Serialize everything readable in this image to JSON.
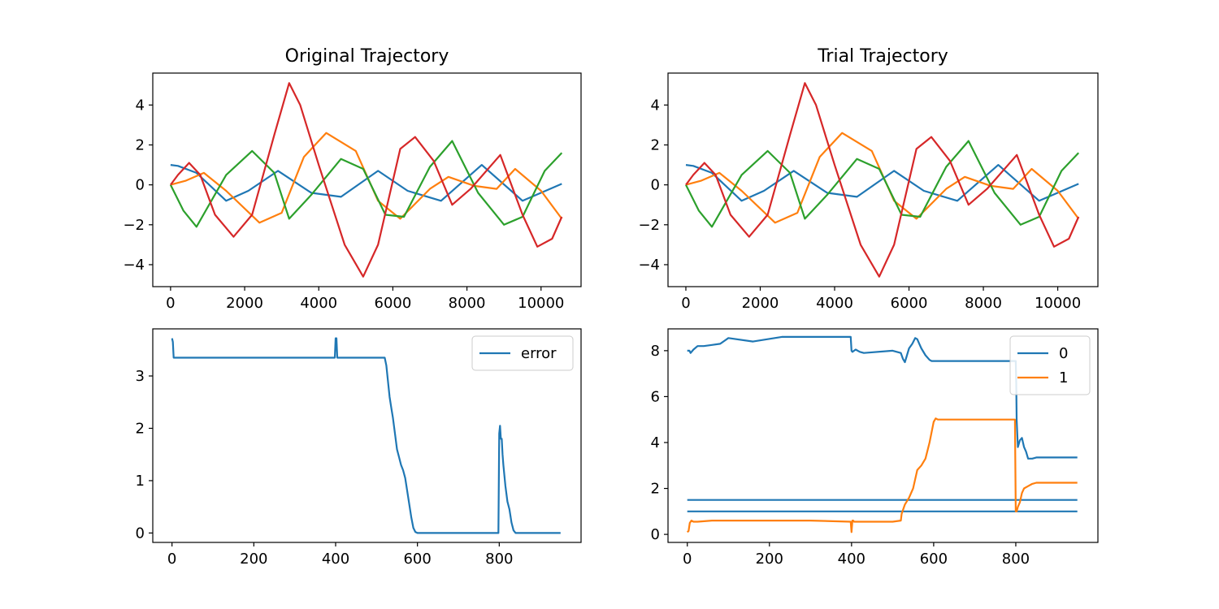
{
  "chart_data": [
    {
      "type": "line",
      "title": "Original Trajectory",
      "xlim": [
        -480,
        11080
      ],
      "ylim": [
        -5.1,
        5.6
      ],
      "xticks": [
        0,
        2000,
        4000,
        6000,
        8000,
        10000
      ],
      "xtick_labels": [
        "0",
        "2000",
        "4000",
        "6000",
        "8000",
        "10000"
      ],
      "yticks": [
        -4,
        -2,
        0,
        2,
        4
      ],
      "ytick_labels": [
        "−4",
        "−2",
        "0",
        "2",
        "4"
      ],
      "series": [
        {
          "color": "#1f77b4",
          "x": [
            0,
            200,
            700,
            1500,
            2100,
            2900,
            3800,
            4600,
            5600,
            6400,
            7300,
            8400,
            9500,
            10560
          ],
          "y": [
            1,
            0.95,
            0.6,
            -0.8,
            -0.3,
            0.7,
            -0.4,
            -0.6,
            0.7,
            -0.3,
            -0.8,
            1.0,
            -0.8,
            0.05
          ]
        },
        {
          "color": "#ff7f0e",
          "x": [
            0,
            400,
            900,
            1500,
            2400,
            3000,
            3600,
            4200,
            5000,
            5600,
            6200,
            7000,
            7500,
            8200,
            8800,
            9300,
            10000,
            10560
          ],
          "y": [
            0,
            0.2,
            0.6,
            -0.3,
            -1.9,
            -1.4,
            1.4,
            2.6,
            1.7,
            -0.8,
            -1.7,
            -0.2,
            0.4,
            -0.05,
            -0.2,
            0.8,
            -0.3,
            -1.7
          ]
        },
        {
          "color": "#2ca02c",
          "x": [
            0,
            350,
            700,
            1500,
            2200,
            2800,
            3200,
            3800,
            4600,
            5200,
            5800,
            6300,
            7000,
            7600,
            8300,
            9000,
            9500,
            10100,
            10560
          ],
          "y": [
            0,
            -1.3,
            -2.1,
            0.5,
            1.7,
            0.6,
            -1.7,
            -0.5,
            1.3,
            0.8,
            -1.5,
            -1.6,
            0.9,
            2.2,
            -0.4,
            -2.0,
            -1.6,
            0.7,
            1.6
          ]
        },
        {
          "color": "#d62728",
          "x": [
            0,
            200,
            500,
            800,
            1200,
            1700,
            2200,
            2800,
            3200,
            3500,
            4000,
            4700,
            5200,
            5600,
            6200,
            6600,
            7100,
            7600,
            8100,
            8900,
            9500,
            9900,
            10300,
            10560
          ],
          "y": [
            0,
            0.5,
            1.1,
            0.5,
            -1.5,
            -2.6,
            -1.5,
            2.5,
            5.1,
            4.0,
            1.0,
            -3.0,
            -4.6,
            -3.0,
            1.8,
            2.4,
            1.2,
            -1.0,
            -0.2,
            1.5,
            -1.5,
            -3.1,
            -2.7,
            -1.6
          ]
        }
      ]
    },
    {
      "type": "line",
      "title": "Trial Trajectory",
      "xlim": [
        -480,
        11080
      ],
      "ylim": [
        -5.1,
        5.6
      ],
      "xticks": [
        0,
        2000,
        4000,
        6000,
        8000,
        10000
      ],
      "xtick_labels": [
        "0",
        "2000",
        "4000",
        "6000",
        "8000",
        "10000"
      ],
      "yticks": [
        -4,
        -2,
        0,
        2,
        4
      ],
      "ytick_labels": [
        "−4",
        "−2",
        "0",
        "2",
        "4"
      ],
      "series": [
        {
          "color": "#1f77b4",
          "x": [
            0,
            200,
            700,
            1500,
            2100,
            2900,
            3800,
            4600,
            5600,
            6400,
            7300,
            8400,
            9500,
            10560
          ],
          "y": [
            1,
            0.95,
            0.6,
            -0.8,
            -0.3,
            0.7,
            -0.4,
            -0.6,
            0.7,
            -0.3,
            -0.8,
            1.0,
            -0.8,
            0.05
          ]
        },
        {
          "color": "#ff7f0e",
          "x": [
            0,
            400,
            900,
            1500,
            2400,
            3000,
            3600,
            4200,
            5000,
            5600,
            6200,
            7000,
            7500,
            8200,
            8800,
            9300,
            10000,
            10560
          ],
          "y": [
            0,
            0.2,
            0.6,
            -0.3,
            -1.9,
            -1.4,
            1.4,
            2.6,
            1.7,
            -0.8,
            -1.7,
            -0.2,
            0.4,
            -0.05,
            -0.2,
            0.8,
            -0.3,
            -1.7
          ]
        },
        {
          "color": "#2ca02c",
          "x": [
            0,
            350,
            700,
            1500,
            2200,
            2800,
            3200,
            3800,
            4600,
            5200,
            5800,
            6300,
            7000,
            7600,
            8300,
            9000,
            9500,
            10100,
            10560
          ],
          "y": [
            0,
            -1.3,
            -2.1,
            0.5,
            1.7,
            0.6,
            -1.7,
            -0.5,
            1.3,
            0.8,
            -1.5,
            -1.6,
            0.9,
            2.2,
            -0.4,
            -2.0,
            -1.6,
            0.7,
            1.6
          ]
        },
        {
          "color": "#d62728",
          "x": [
            0,
            200,
            500,
            800,
            1200,
            1700,
            2200,
            2800,
            3200,
            3500,
            4000,
            4700,
            5200,
            5600,
            6200,
            6600,
            7100,
            7600,
            8100,
            8900,
            9500,
            9900,
            10300,
            10560
          ],
          "y": [
            0,
            0.5,
            1.1,
            0.5,
            -1.5,
            -2.6,
            -1.5,
            2.5,
            5.1,
            4.0,
            1.0,
            -3.0,
            -4.6,
            -3.0,
            1.8,
            2.4,
            1.2,
            -1.0,
            -0.2,
            1.5,
            -1.5,
            -3.1,
            -2.7,
            -1.6
          ]
        }
      ]
    },
    {
      "type": "line",
      "title": "",
      "xlim": [
        -47,
        1000
      ],
      "ylim": [
        -0.18,
        3.9
      ],
      "xticks": [
        0,
        200,
        400,
        600,
        800
      ],
      "xtick_labels": [
        "0",
        "200",
        "400",
        "600",
        "800"
      ],
      "yticks": [
        0,
        1,
        2,
        3
      ],
      "ytick_labels": [
        "0",
        "1",
        "2",
        "3"
      ],
      "legend": {
        "position": "top-right",
        "entries": [
          "error"
        ]
      },
      "series": [
        {
          "name": "error",
          "color": "#1f77b4",
          "x": [
            0,
            2,
            4,
            6,
            398,
            400,
            402,
            404,
            406,
            520,
            524,
            528,
            532,
            536,
            540,
            545,
            550,
            555,
            560,
            565,
            570,
            575,
            580,
            585,
            590,
            595,
            600,
            795,
            798,
            800,
            802,
            804,
            806,
            808,
            810,
            815,
            820,
            825,
            830,
            835,
            840,
            950
          ],
          "y": [
            3.72,
            3.65,
            3.35,
            3.35,
            3.35,
            3.72,
            3.72,
            3.35,
            3.35,
            3.35,
            3.2,
            2.9,
            2.6,
            2.4,
            2.2,
            1.9,
            1.6,
            1.45,
            1.3,
            1.2,
            1.05,
            0.8,
            0.55,
            0.3,
            0.1,
            0.02,
            0,
            0,
            0,
            1.9,
            2.05,
            1.8,
            1.8,
            1.5,
            1.3,
            0.9,
            0.6,
            0.45,
            0.2,
            0.05,
            0,
            0
          ]
        }
      ]
    },
    {
      "type": "line",
      "title": "",
      "xlim": [
        -47,
        1000
      ],
      "ylim": [
        -0.35,
        8.95
      ],
      "xticks": [
        0,
        200,
        400,
        600,
        800
      ],
      "xtick_labels": [
        "0",
        "200",
        "400",
        "600",
        "800"
      ],
      "yticks": [
        0,
        2,
        4,
        6,
        8
      ],
      "ytick_labels": [
        "0",
        "2",
        "4",
        "6",
        "8"
      ],
      "legend": {
        "position": "top-right",
        "entries": [
          "0",
          "1"
        ]
      },
      "series": [
        {
          "name": "0",
          "color": "#1f77b4",
          "x": [
            0,
            5,
            8,
            15,
            25,
            40,
            60,
            80,
            100,
            160,
            230,
            300,
            398,
            400,
            402,
            410,
            420,
            430,
            500,
            520,
            525,
            530,
            540,
            548,
            555,
            560,
            565,
            570,
            580,
            590,
            595,
            600,
            800,
            801,
            802,
            805,
            810,
            815,
            820,
            825,
            830,
            840,
            850,
            950
          ],
          "y": [
            8.0,
            8.0,
            7.9,
            8.05,
            8.2,
            8.2,
            8.25,
            8.3,
            8.55,
            8.4,
            8.6,
            8.6,
            8.6,
            8.0,
            7.95,
            8.05,
            7.95,
            7.9,
            8.0,
            7.9,
            7.65,
            7.5,
            8.1,
            8.3,
            8.55,
            8.5,
            8.3,
            8.1,
            7.8,
            7.6,
            7.55,
            7.55,
            7.55,
            6.6,
            5.0,
            3.8,
            4.1,
            4.2,
            3.8,
            3.6,
            3.3,
            3.3,
            3.35,
            3.35
          ]
        },
        {
          "color": "#1f77b4",
          "x": [
            0,
            950
          ],
          "y": [
            1.5,
            1.5
          ]
        },
        {
          "color": "#1f77b4",
          "x": [
            0,
            950
          ],
          "y": [
            1.0,
            1.0
          ]
        },
        {
          "name": "1",
          "color": "#ff7f0e",
          "x": [
            0,
            3,
            6,
            10,
            15,
            25,
            60,
            100,
            230,
            300,
            398,
            400,
            402,
            404,
            406,
            410,
            500,
            520,
            522,
            530,
            540,
            550,
            560,
            570,
            580,
            590,
            600,
            605,
            610,
            798,
            800,
            802,
            805,
            810,
            815,
            820,
            830,
            840,
            850,
            950
          ],
          "y": [
            0.1,
            0.15,
            0.5,
            0.6,
            0.55,
            0.55,
            0.6,
            0.6,
            0.6,
            0.6,
            0.55,
            0.1,
            0.6,
            0.6,
            0.55,
            0.55,
            0.55,
            0.6,
            0.9,
            1.3,
            1.6,
            2.0,
            2.8,
            3.0,
            3.3,
            4.0,
            4.9,
            5.05,
            5.0,
            5.0,
            1.0,
            1.0,
            1.2,
            1.4,
            1.8,
            2.0,
            2.1,
            2.2,
            2.25,
            2.25
          ]
        }
      ]
    }
  ]
}
